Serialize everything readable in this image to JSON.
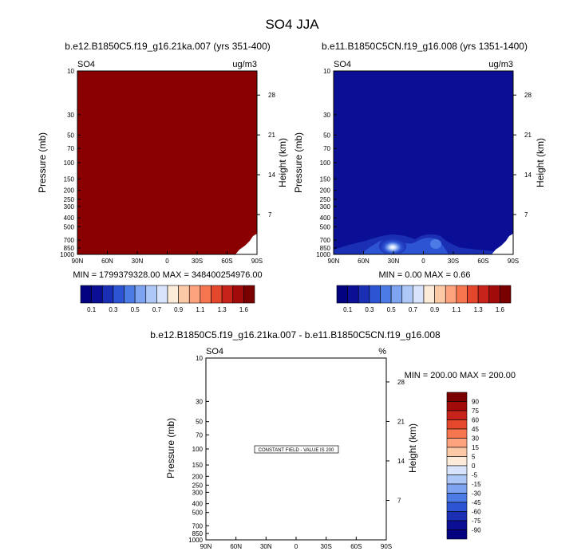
{
  "page_title": "SO4 JJA",
  "charts": [
    {
      "title": "b.e12.B1850C5.f19_g16.21ka.007 (yrs 351-400)",
      "var_label": "SO4",
      "units": "ug/m3",
      "ylabel": "Pressure (mb)",
      "ylabel_right": "Height (km)",
      "stats": "MIN = 1799379328.00   MAX = 348400254976.00",
      "fill_color": "#8a0000"
    },
    {
      "title": "b.e11.B1850C5CN.f19_g16.008 (yrs 1351-1400)",
      "var_label": "SO4",
      "units": "ug/m3",
      "ylabel": "Pressure (mb)",
      "ylabel_right": "Height (km)",
      "stats": "MIN =   0.00   MAX =   0.66",
      "fill_color": "#0b0f95"
    },
    {
      "title": "b.e12.B1850C5.f19_g16.21ka.007 - b.e11.B1850C5CN.f19_g16.008",
      "var_label": "SO4",
      "units": "%",
      "ylabel": "Pressure (mb)",
      "ylabel_right": "Height (km)",
      "stats": "MIN = 200.00   MAX = 200.00",
      "annotation": "CONSTANT FIELD - VALUE IS 200",
      "fill_color": "#ffffff"
    }
  ],
  "x_ticks": [
    "90N",
    "60N",
    "30N",
    "0",
    "30S",
    "60S",
    "90S"
  ],
  "pressure_ticks": [
    {
      "label": "10",
      "p": 10
    },
    {
      "label": "30",
      "p": 30
    },
    {
      "label": "50",
      "p": 50
    },
    {
      "label": "70",
      "p": 70
    },
    {
      "label": "100",
      "p": 100
    },
    {
      "label": "150",
      "p": 150
    },
    {
      "label": "200",
      "p": 200
    },
    {
      "label": "250",
      "p": 250
    },
    {
      "label": "300",
      "p": 300
    },
    {
      "label": "400",
      "p": 400
    },
    {
      "label": "500",
      "p": 500
    },
    {
      "label": "700",
      "p": 700
    },
    {
      "label": "850",
      "p": 850
    },
    {
      "label": "1000",
      "p": 1000
    }
  ],
  "height_ticks": [
    {
      "label": "28",
      "km": 28
    },
    {
      "label": "21",
      "km": 21
    },
    {
      "label": "14",
      "km": 14
    },
    {
      "label": "7",
      "km": 7
    }
  ],
  "colorbar_top": {
    "labels": [
      "0.1",
      "0.3",
      "0.5",
      "0.7",
      "0.9",
      "1.1",
      "1.3",
      "1.6"
    ],
    "colors": [
      "#03037f",
      "#0b0f95",
      "#1a2fb4",
      "#2d55d3",
      "#4c7be6",
      "#7ea3f0",
      "#adc7f6",
      "#d7e4fb",
      "#fcebd8",
      "#fcc9a6",
      "#fca27c",
      "#f6774f",
      "#e5472d",
      "#c7231a",
      "#a10c0a",
      "#7a0000"
    ]
  },
  "colorbar_right": {
    "labels": [
      "90",
      "75",
      "60",
      "45",
      "30",
      "15",
      "5",
      "0",
      "-5",
      "-15",
      "-30",
      "-45",
      "-60",
      "-75",
      "-90"
    ],
    "colors": [
      "#7a0000",
      "#a10c0a",
      "#c7231a",
      "#e5472d",
      "#f6774f",
      "#fca27c",
      "#fcc9a6",
      "#fcebd8",
      "#d7e4fb",
      "#adc7f6",
      "#7ea3f0",
      "#4c7be6",
      "#2d55d3",
      "#1a2fb4",
      "#0b0f95",
      "#03037f"
    ]
  },
  "chart_data": [
    {
      "type": "heatmap",
      "title": "b.e12.B1850C5.f19_g16.21ka.007 (yrs 351-400)",
      "xlabel": "",
      "ylabel": "Pressure (mb)",
      "x_range": [
        "90N",
        "90S"
      ],
      "y_range_mb": [
        1000,
        10
      ],
      "units": "ug/m3",
      "min": 1799379328.0,
      "max": 348400254976.0,
      "description_values": "field exceeds top contour level everywhere"
    },
    {
      "type": "heatmap",
      "title": "b.e11.B1850C5CN.f19_g16.008 (yrs 1351-1400)",
      "xlabel": "",
      "ylabel": "Pressure (mb)",
      "x_range": [
        "90N",
        "90S"
      ],
      "y_range_mb": [
        1000,
        10
      ],
      "units": "ug/m3",
      "min": 0.0,
      "max": 0.66,
      "maxima": [
        {
          "lat": "30N",
          "p_mb": 900,
          "value": 0.66
        },
        {
          "lat": "5S",
          "p_mb": 850,
          "value": 0.3
        }
      ]
    },
    {
      "type": "heatmap",
      "title": "b.e12.B1850C5.f19_g16.21ka.007 - b.e11.B1850C5CN.f19_g16.008",
      "xlabel": "",
      "ylabel": "Pressure (mb)",
      "x_range": [
        "90N",
        "90S"
      ],
      "y_range_mb": [
        1000,
        10
      ],
      "units": "%",
      "min": 200.0,
      "max": 200.0,
      "constant_value": 200
    }
  ]
}
